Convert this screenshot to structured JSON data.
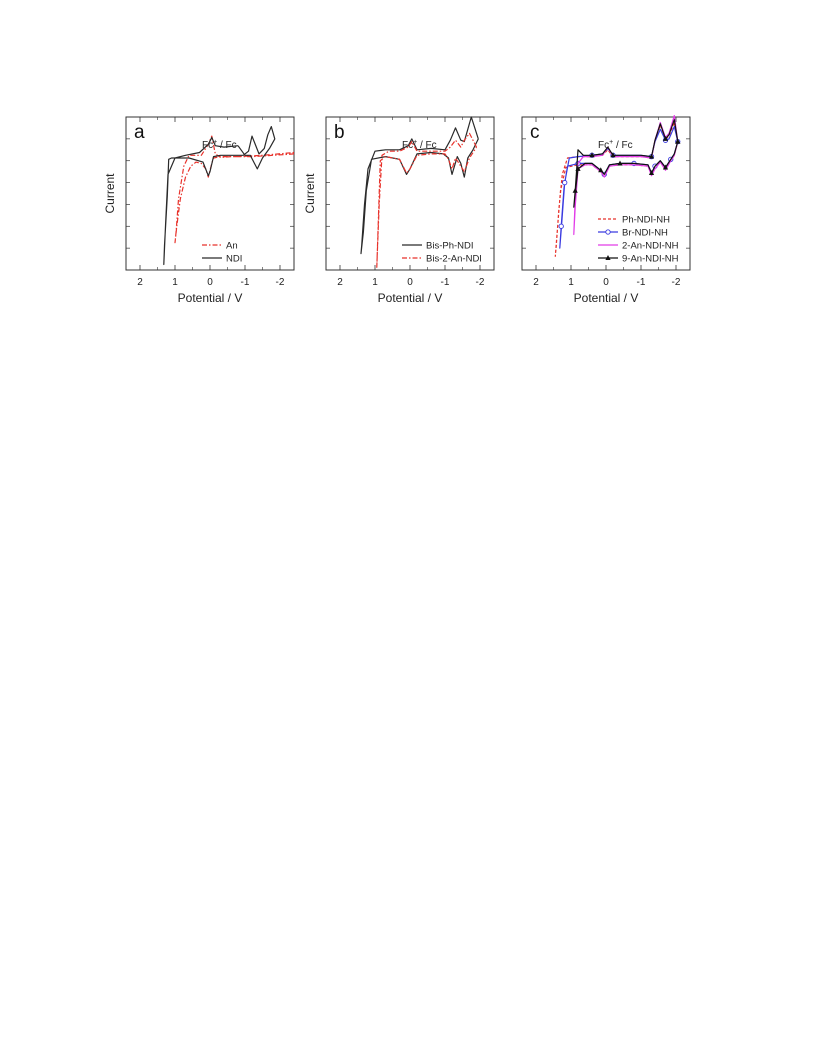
{
  "chart_data": [
    {
      "type": "line",
      "panel_label": "a",
      "annotation": "Fc",
      "annotation_sup": "+",
      "annotation_tail": " / Fc",
      "xlabel": "Potential / V",
      "ylabel": "Current",
      "xlim": [
        2.4,
        -2.4
      ],
      "ylim": [
        -3.2,
        2.4
      ],
      "x_ticks": [
        2,
        1,
        0,
        -1,
        -2
      ],
      "x_tick_labels": [
        "2",
        "1",
        "0",
        "-1",
        "-2"
      ],
      "legend": "lower-right",
      "series": [
        {
          "name": "An",
          "color": "#e8322b",
          "dash": "5,2,1.5,2",
          "marker": "none",
          "x": [
            -2.4,
            -1.8,
            -1.2,
            -0.6,
            -0.3,
            -0.15,
            -0.05,
            0.05,
            0.25,
            0.45,
            0.6,
            0.75,
            0.9,
            0.97,
            1.0,
            0.95,
            0.85,
            0.7,
            0.55,
            0.4,
            0.25,
            0.12,
            0.05,
            -0.05,
            -0.1,
            -0.3,
            -0.8,
            -1.5,
            -2.4
          ],
          "y": [
            1.05,
            1.0,
            0.95,
            0.95,
            0.92,
            1.05,
            1.7,
            1.4,
            1.0,
            1.0,
            1.0,
            0.6,
            -0.6,
            -1.8,
            -2.2,
            -1.6,
            -0.6,
            0.2,
            0.6,
            0.75,
            0.7,
            0.5,
            0.2,
            0.7,
            0.9,
            0.95,
            0.95,
            1.0,
            1.1
          ]
        },
        {
          "name": "NDI",
          "color": "#2a2a2a",
          "dash": "",
          "marker": "none",
          "x": [
            -0.8,
            -0.4,
            -0.15,
            -0.05,
            0.05,
            0.3,
            0.7,
            1.0,
            1.2,
            1.27,
            1.32,
            1.3,
            1.22,
            1.18,
            1.1,
            0.6,
            0.2,
            0.05,
            0.0,
            -0.1,
            -0.3,
            -0.7,
            -0.95,
            -1.1,
            -1.2,
            -1.4,
            -1.55,
            -1.65,
            -1.75,
            -1.85,
            -1.7,
            -1.5,
            -1.35,
            -1.25,
            -1.15,
            -1.0,
            -0.8
          ],
          "y": [
            1.35,
            1.3,
            1.35,
            1.65,
            1.4,
            1.1,
            1.0,
            0.9,
            0.3,
            -1.5,
            -3.0,
            -2.3,
            -0.5,
            0.85,
            0.9,
            0.9,
            0.75,
            0.25,
            0.4,
            0.95,
            1.0,
            1.0,
            1.0,
            1.15,
            1.7,
            1.05,
            1.25,
            1.75,
            2.05,
            1.6,
            1.25,
            0.9,
            0.5,
            0.75,
            1.0,
            1.0,
            1.35
          ]
        }
      ]
    },
    {
      "type": "line",
      "panel_label": "b",
      "annotation": "Fc",
      "annotation_sup": "+",
      "annotation_tail": " / Fc",
      "xlabel": "Potential / V",
      "ylabel": "Current",
      "xlim": [
        2.4,
        -2.4
      ],
      "ylim": [
        -3.2,
        2.4
      ],
      "x_ticks": [
        2,
        1,
        0,
        -1,
        -2
      ],
      "x_tick_labels": [
        "2",
        "1",
        "0",
        "-1",
        "-2"
      ],
      "legend": "lower-right",
      "series": [
        {
          "name": "Bis-Ph-NDI",
          "color": "#2a2a2a",
          "dash": "",
          "marker": "none",
          "x": [
            -1.95,
            -1.75,
            -1.55,
            -1.45,
            -1.3,
            -1.15,
            -1.0,
            -0.6,
            -0.2,
            -0.05,
            0.05,
            0.3,
            0.7,
            1.0,
            1.2,
            1.3,
            1.38,
            1.4,
            1.33,
            1.25,
            1.1,
            0.7,
            0.3,
            0.1,
            0.0,
            -0.2,
            -0.6,
            -0.95,
            -1.1,
            -1.2,
            -1.35,
            -1.45,
            -1.55,
            -1.65,
            -1.8,
            -1.95
          ],
          "y": [
            1.6,
            2.4,
            1.5,
            1.55,
            2.0,
            1.55,
            1.2,
            1.25,
            1.2,
            1.6,
            1.35,
            1.2,
            1.2,
            1.15,
            0.5,
            -0.8,
            -2.3,
            -2.6,
            -1.8,
            -0.3,
            0.85,
            0.95,
            0.85,
            0.3,
            0.5,
            1.05,
            1.1,
            1.05,
            0.9,
            0.3,
            0.95,
            0.7,
            0.2,
            0.9,
            1.2,
            1.6
          ]
        },
        {
          "name": "Bis-2-An-NDI",
          "color": "#e8322b",
          "dash": "5,2,1.5,2",
          "marker": "none",
          "x": [
            -1.9,
            -1.7,
            -1.55,
            -1.45,
            -1.3,
            -1.15,
            -1.0,
            -0.6,
            -0.2,
            -0.05,
            0.05,
            0.3,
            0.6,
            0.8,
            0.88,
            0.93,
            0.95,
            0.92,
            0.88,
            0.85,
            0.7,
            0.3,
            0.1,
            0.0,
            -0.2,
            -0.6,
            -1.0,
            -1.1,
            -1.2,
            -1.3,
            -1.45,
            -1.55,
            -1.7,
            -1.9
          ],
          "y": [
            1.3,
            1.8,
            1.55,
            1.3,
            1.55,
            1.3,
            1.15,
            1.15,
            1.15,
            1.5,
            1.3,
            1.15,
            1.15,
            1.0,
            -0.8,
            -2.5,
            -3.1,
            -2.0,
            -0.4,
            0.8,
            0.95,
            0.85,
            0.35,
            0.5,
            1.0,
            1.05,
            1.05,
            0.85,
            0.5,
            0.9,
            0.6,
            0.4,
            0.9,
            1.3
          ]
        }
      ]
    },
    {
      "type": "line",
      "panel_label": "c",
      "annotation": "Fc",
      "annotation_sup": "+",
      "annotation_tail": " / Fc",
      "xlabel": "Potential / V",
      "ylabel": "",
      "xlim": [
        2.4,
        -2.4
      ],
      "ylim": [
        -3.2,
        2.4
      ],
      "x_ticks": [
        2,
        1,
        0,
        -1,
        -2
      ],
      "x_tick_labels": [
        "2",
        "1",
        "0",
        "-1",
        "-2"
      ],
      "legend": "lower-right",
      "series": [
        {
          "name": "Ph-NDI-NH",
          "color": "#e8322b",
          "dash": "3,2",
          "marker": "none",
          "x": [
            -2.05,
            -1.95,
            -1.8,
            -1.7,
            -1.55,
            -1.4,
            -1.3,
            -1.0,
            -0.6,
            -0.2,
            -0.05,
            0.1,
            0.4,
            0.8,
            1.1,
            1.25,
            1.35,
            1.42,
            1.45,
            1.4,
            1.3,
            1.15,
            0.8,
            0.4,
            0.15,
            0.05,
            -0.1,
            -0.4,
            -0.8,
            -1.2,
            -1.3,
            -1.4,
            -1.55,
            -1.7,
            -1.85,
            -1.95,
            -2.05
          ],
          "y": [
            1.5,
            2.2,
            1.7,
            1.6,
            2.1,
            1.55,
            0.9,
            0.95,
            0.95,
            0.95,
            1.2,
            1.0,
            0.95,
            0.95,
            0.9,
            0.3,
            -1.0,
            -2.3,
            -2.7,
            -1.9,
            -0.3,
            0.55,
            0.65,
            0.65,
            0.4,
            0.25,
            0.6,
            0.65,
            0.65,
            0.6,
            0.3,
            0.55,
            0.75,
            0.5,
            0.8,
            1.0,
            1.5
          ]
        },
        {
          "name": "Br-NDI-NH",
          "color": "#3a3ae0",
          "dash": "",
          "marker": "circle",
          "x": [
            -2.05,
            -1.95,
            -1.8,
            -1.7,
            -1.55,
            -1.4,
            -1.3,
            -1.0,
            -0.6,
            -0.2,
            -0.05,
            0.1,
            0.4,
            0.8,
            1.05,
            1.18,
            1.27,
            1.32,
            1.28,
            1.2,
            1.1,
            0.8,
            0.4,
            0.15,
            0.05,
            -0.1,
            -0.4,
            -0.8,
            -1.2,
            -1.3,
            -1.4,
            -1.55,
            -1.7,
            -1.85,
            -1.95,
            -2.05
          ],
          "y": [
            1.5,
            2.05,
            1.6,
            1.55,
            1.95,
            1.5,
            0.95,
            1.0,
            1.0,
            1.0,
            1.25,
            1.05,
            1.0,
            0.95,
            0.9,
            0.0,
            -1.6,
            -2.4,
            -1.6,
            -0.2,
            0.6,
            0.7,
            0.7,
            0.45,
            0.3,
            0.65,
            0.7,
            0.7,
            0.65,
            0.35,
            0.6,
            0.8,
            0.55,
            0.85,
            1.05,
            1.5
          ]
        },
        {
          "name": "2-An-NDI-NH",
          "color": "#e23ce8",
          "dash": "",
          "marker": "none",
          "x": [
            -2.05,
            -1.95,
            -1.8,
            -1.7,
            -1.55,
            -1.4,
            -1.3,
            -1.0,
            -0.6,
            -0.2,
            -0.05,
            0.1,
            0.4,
            0.65,
            0.8,
            0.88,
            0.92,
            0.88,
            0.8,
            0.6,
            0.4,
            0.15,
            0.05,
            -0.1,
            -0.4,
            -0.8,
            -1.2,
            -1.3,
            -1.4,
            -1.55,
            -1.7,
            -1.85,
            -1.95,
            -2.05
          ],
          "y": [
            1.5,
            2.45,
            1.8,
            1.65,
            2.2,
            1.55,
            0.9,
            0.95,
            0.95,
            0.95,
            1.3,
            1.0,
            0.95,
            0.95,
            0.7,
            -0.6,
            -1.9,
            -0.9,
            0.5,
            0.65,
            0.65,
            0.4,
            0.2,
            0.6,
            0.65,
            0.65,
            0.6,
            0.25,
            0.5,
            0.75,
            0.45,
            0.8,
            1.0,
            1.5
          ]
        },
        {
          "name": "9-An-NDI-NH",
          "color": "#111111",
          "dash": "",
          "marker": "triangle",
          "x": [
            -2.05,
            -1.95,
            -1.8,
            -1.7,
            -1.55,
            -1.4,
            -1.3,
            -1.0,
            -0.6,
            -0.2,
            -0.05,
            0.1,
            0.4,
            0.65,
            0.8,
            0.88,
            0.92,
            0.88,
            0.8,
            0.6,
            0.4,
            0.15,
            0.05,
            -0.1,
            -0.4,
            -0.8,
            -1.2,
            -1.3,
            -1.4,
            -1.55,
            -1.7,
            -1.85,
            -1.95,
            -2.05
          ],
          "y": [
            1.5,
            2.3,
            1.75,
            1.6,
            2.15,
            1.55,
            0.95,
            1.0,
            1.0,
            1.0,
            1.3,
            1.05,
            1.0,
            1.0,
            1.2,
            -0.3,
            -0.9,
            -0.4,
            0.5,
            0.7,
            0.7,
            0.45,
            0.3,
            0.65,
            0.7,
            0.7,
            0.65,
            0.35,
            0.6,
            0.8,
            0.55,
            0.85,
            1.05,
            1.5
          ]
        }
      ]
    }
  ]
}
